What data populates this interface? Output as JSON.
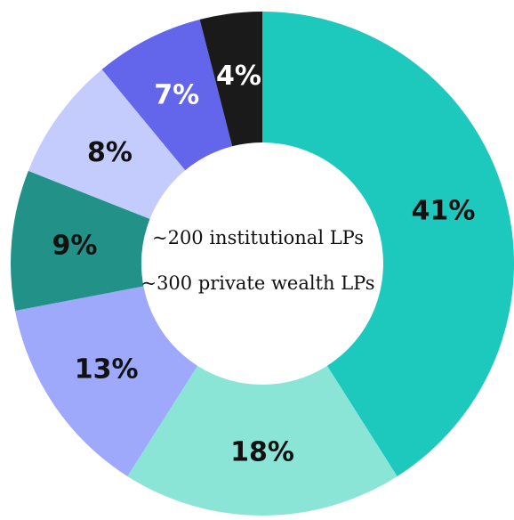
{
  "chart_data": {
    "type": "donut",
    "categories": [
      "",
      "",
      "",
      "",
      "",
      "",
      ""
    ],
    "values": [
      41,
      18,
      13,
      9,
      8,
      7,
      4
    ],
    "labels": [
      "41%",
      "18%",
      "13%",
      "9%",
      "8%",
      "7%",
      "4%"
    ],
    "colors": [
      "#1DC8BC",
      "#8BE5D6",
      "#9EA9FB",
      "#229289",
      "#C3CCFC",
      "#6366EA",
      "#1A1A1A"
    ],
    "label_colors": [
      "#111111",
      "#111111",
      "#111111",
      "#111111",
      "#111111",
      "#FFFFFF",
      "#FFFFFF"
    ],
    "start_angle_deg": 0,
    "direction": "clockwise",
    "center_text": [
      "~200 institutional LPs",
      "~300 private wealth LPs"
    ]
  }
}
